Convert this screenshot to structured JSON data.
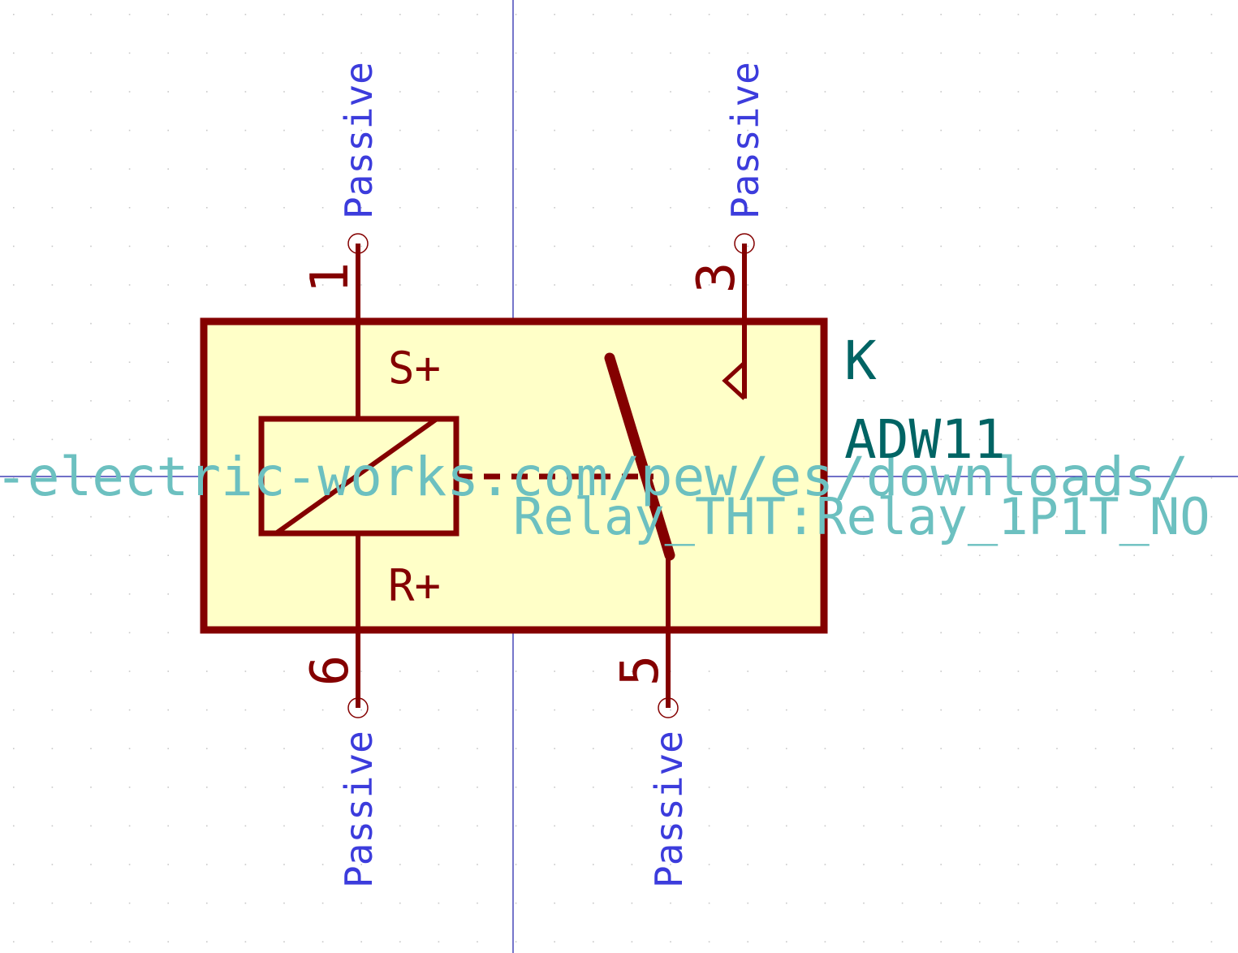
{
  "colors": {
    "background": "#ffffff",
    "grid_dot": "#c8c8c8",
    "axis": "#1a1aa8",
    "body_fill": "#ffffc8",
    "symbol": "#840000",
    "pin_type": "#3c3cdc",
    "reference": "#006464",
    "hidden_field": "#6cc0c0"
  },
  "symbol": {
    "reference": "K",
    "value": "ADW11",
    "footprint": "Relay_THT:Relay_1P1T_NO",
    "datasheet": "-electric-works.com/pew/es/downloads/",
    "coil_labels": {
      "top": "S+",
      "bottom": "R+"
    }
  },
  "pins": [
    {
      "number": "1",
      "type": "Passive"
    },
    {
      "number": "3",
      "type": "Passive"
    },
    {
      "number": "6",
      "type": "Passive"
    },
    {
      "number": "5",
      "type": "Passive"
    }
  ]
}
